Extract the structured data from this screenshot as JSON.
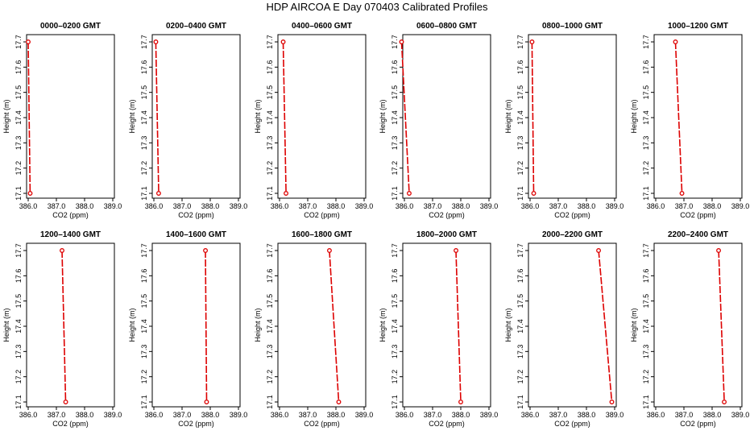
{
  "figure": {
    "title": "HDP AIRCOA E  Day 070403  Calibrated Profiles"
  },
  "style": {
    "series_color": "#dd0000",
    "axis_color": "#000000"
  },
  "chart_data": [
    {
      "type": "line",
      "title": "0000–0200 GMT",
      "xlabel": "CO2 (ppm)",
      "ylabel": "Height (m)",
      "xlim": [
        386.0,
        389.0
      ],
      "ylim": [
        17.1,
        17.7
      ],
      "xticks": [
        "386.0",
        "387.0",
        "388.0",
        "389.0"
      ],
      "yticks": [
        "17.1",
        "17.2",
        "17.3",
        "17.4",
        "17.5",
        "17.6",
        "17.7"
      ],
      "points": [
        {
          "x": 386.0,
          "y": 17.7
        },
        {
          "x": 386.07,
          "y": 17.1
        }
      ]
    },
    {
      "type": "line",
      "title": "0200–0400 GMT",
      "xlabel": "CO2 (ppm)",
      "ylabel": "Height (m)",
      "xlim": [
        386.0,
        389.0
      ],
      "ylim": [
        17.1,
        17.7
      ],
      "xticks": [
        "386.0",
        "387.0",
        "388.0",
        "389.0"
      ],
      "yticks": [
        "17.1",
        "17.2",
        "17.3",
        "17.4",
        "17.5",
        "17.6",
        "17.7"
      ],
      "points": [
        {
          "x": 386.07,
          "y": 17.7
        },
        {
          "x": 386.17,
          "y": 17.1
        }
      ]
    },
    {
      "type": "line",
      "title": "0400–0600 GMT",
      "xlabel": "CO2 (ppm)",
      "ylabel": "Height (m)",
      "xlim": [
        386.0,
        389.0
      ],
      "ylim": [
        17.1,
        17.7
      ],
      "xticks": [
        "386.0",
        "387.0",
        "388.0",
        "389.0"
      ],
      "yticks": [
        "17.1",
        "17.2",
        "17.3",
        "17.4",
        "17.5",
        "17.6",
        "17.7"
      ],
      "points": [
        {
          "x": 386.13,
          "y": 17.7
        },
        {
          "x": 386.23,
          "y": 17.1
        }
      ]
    },
    {
      "type": "line",
      "title": "0600–0800 GMT",
      "xlabel": "CO2 (ppm)",
      "ylabel": "Height (m)",
      "xlim": [
        386.0,
        389.0
      ],
      "ylim": [
        17.1,
        17.7
      ],
      "xticks": [
        "386.0",
        "387.0",
        "388.0",
        "389.0"
      ],
      "yticks": [
        "17.1",
        "17.2",
        "17.3",
        "17.4",
        "17.5",
        "17.6",
        "17.7"
      ],
      "points": [
        {
          "x": 385.9,
          "y": 17.7
        },
        {
          "x": 386.17,
          "y": 17.1
        }
      ]
    },
    {
      "type": "line",
      "title": "0800–1000 GMT",
      "xlabel": "CO2 (ppm)",
      "ylabel": "Height (m)",
      "xlim": [
        386.0,
        389.0
      ],
      "ylim": [
        17.1,
        17.7
      ],
      "xticks": [
        "386.0",
        "387.0",
        "388.0",
        "389.0"
      ],
      "yticks": [
        "17.1",
        "17.2",
        "17.3",
        "17.4",
        "17.5",
        "17.6",
        "17.7"
      ],
      "points": [
        {
          "x": 386.07,
          "y": 17.7
        },
        {
          "x": 386.13,
          "y": 17.1
        }
      ]
    },
    {
      "type": "line",
      "title": "1000–1200 GMT",
      "xlabel": "CO2 (ppm)",
      "ylabel": "Height (m)",
      "xlim": [
        386.0,
        389.0
      ],
      "ylim": [
        17.1,
        17.7
      ],
      "xticks": [
        "386.0",
        "387.0",
        "388.0",
        "389.0"
      ],
      "yticks": [
        "17.1",
        "17.2",
        "17.3",
        "17.4",
        "17.5",
        "17.6",
        "17.7"
      ],
      "points": [
        {
          "x": 386.7,
          "y": 17.7
        },
        {
          "x": 386.93,
          "y": 17.1
        }
      ]
    },
    {
      "type": "line",
      "title": "1200–1400 GMT",
      "xlabel": "CO2 (ppm)",
      "ylabel": "Height (m)",
      "xlim": [
        386.0,
        389.0
      ],
      "ylim": [
        17.1,
        17.7
      ],
      "xticks": [
        "386.0",
        "387.0",
        "388.0",
        "389.0"
      ],
      "yticks": [
        "17.1",
        "17.2",
        "17.3",
        "17.4",
        "17.5",
        "17.6",
        "17.7"
      ],
      "points": [
        {
          "x": 387.2,
          "y": 17.7
        },
        {
          "x": 387.33,
          "y": 17.1
        }
      ]
    },
    {
      "type": "line",
      "title": "1400–1600 GMT",
      "xlabel": "CO2 (ppm)",
      "ylabel": "Height (m)",
      "xlim": [
        386.0,
        389.0
      ],
      "ylim": [
        17.1,
        17.7
      ],
      "xticks": [
        "386.0",
        "387.0",
        "388.0",
        "389.0"
      ],
      "yticks": [
        "17.1",
        "17.2",
        "17.3",
        "17.4",
        "17.5",
        "17.6",
        "17.7"
      ],
      "points": [
        {
          "x": 387.83,
          "y": 17.7
        },
        {
          "x": 387.87,
          "y": 17.1
        }
      ]
    },
    {
      "type": "line",
      "title": "1600–1800 GMT",
      "xlabel": "CO2 (ppm)",
      "ylabel": "Height (m)",
      "xlim": [
        386.0,
        389.0
      ],
      "ylim": [
        17.1,
        17.7
      ],
      "xticks": [
        "386.0",
        "387.0",
        "388.0",
        "389.0"
      ],
      "yticks": [
        "17.1",
        "17.2",
        "17.3",
        "17.4",
        "17.5",
        "17.6",
        "17.7"
      ],
      "points": [
        {
          "x": 387.77,
          "y": 17.7
        },
        {
          "x": 388.1,
          "y": 17.1
        }
      ]
    },
    {
      "type": "line",
      "title": "1800–2000 GMT",
      "xlabel": "CO2 (ppm)",
      "ylabel": "Height (m)",
      "xlim": [
        386.0,
        389.0
      ],
      "ylim": [
        17.1,
        17.7
      ],
      "xticks": [
        "386.0",
        "387.0",
        "388.0",
        "389.0"
      ],
      "yticks": [
        "17.1",
        "17.2",
        "17.3",
        "17.4",
        "17.5",
        "17.6",
        "17.7"
      ],
      "points": [
        {
          "x": 387.83,
          "y": 17.7
        },
        {
          "x": 388.0,
          "y": 17.1
        }
      ]
    },
    {
      "type": "line",
      "title": "2000–2200 GMT",
      "xlabel": "CO2 (ppm)",
      "ylabel": "Height (m)",
      "xlim": [
        386.0,
        389.0
      ],
      "ylim": [
        17.1,
        17.7
      ],
      "xticks": [
        "386.0",
        "387.0",
        "388.0",
        "389.0"
      ],
      "yticks": [
        "17.1",
        "17.2",
        "17.3",
        "17.4",
        "17.5",
        "17.6",
        "17.7"
      ],
      "points": [
        {
          "x": 388.43,
          "y": 17.7
        },
        {
          "x": 388.9,
          "y": 17.1
        }
      ]
    },
    {
      "type": "line",
      "title": "2200–2400 GMT",
      "xlabel": "CO2 (ppm)",
      "ylabel": "Height (m)",
      "xlim": [
        386.0,
        389.0
      ],
      "ylim": [
        17.1,
        17.7
      ],
      "xticks": [
        "386.0",
        "387.0",
        "388.0",
        "389.0"
      ],
      "yticks": [
        "17.1",
        "17.2",
        "17.3",
        "17.4",
        "17.5",
        "17.6",
        "17.7"
      ],
      "points": [
        {
          "x": 388.23,
          "y": 17.7
        },
        {
          "x": 388.43,
          "y": 17.1
        }
      ]
    }
  ]
}
